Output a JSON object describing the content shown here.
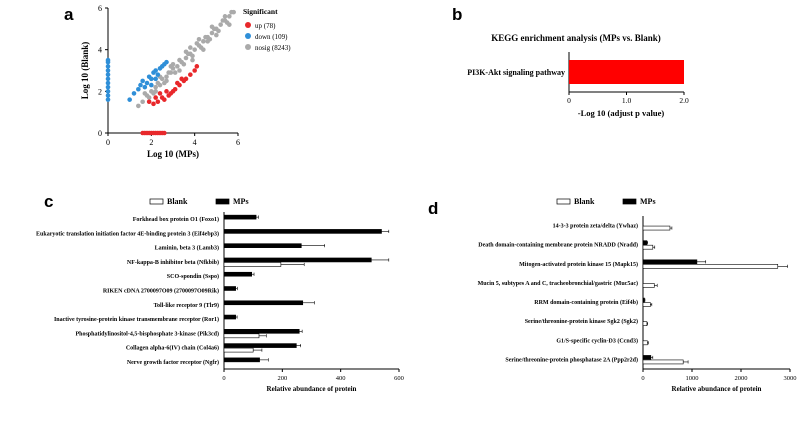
{
  "panels": {
    "a": "a",
    "b": "b",
    "c": "c",
    "d": "d"
  },
  "chart_data": [
    {
      "id": "a",
      "type": "scatter",
      "title": "",
      "xlabel": "Log 10 (MPs)",
      "ylabel": "Log 10 (Blank)",
      "xlim": [
        0,
        6
      ],
      "ylim": [
        0,
        6
      ],
      "xticks": [
        "0",
        "2",
        "4",
        "6"
      ],
      "yticks": [
        "0",
        "2",
        "4",
        "6"
      ],
      "legend_title": "Significant",
      "series": [
        {
          "name": "up",
          "label": "up (78)",
          "color": "#e8282b",
          "points": [
            [
              1.6,
              0
            ],
            [
              1.7,
              0
            ],
            [
              1.8,
              0
            ],
            [
              1.9,
              0
            ],
            [
              2.0,
              0
            ],
            [
              2.1,
              0
            ],
            [
              2.2,
              0
            ],
            [
              2.3,
              0
            ],
            [
              2.4,
              0
            ],
            [
              2.5,
              0
            ],
            [
              2.6,
              0
            ],
            [
              1.9,
              1.5
            ],
            [
              2.1,
              1.4
            ],
            [
              2.3,
              1.5
            ],
            [
              2.5,
              1.7
            ],
            [
              2.6,
              1.6
            ],
            [
              2.8,
              1.8
            ],
            [
              2.9,
              1.9
            ],
            [
              3.0,
              2.0
            ],
            [
              3.1,
              2.1
            ],
            [
              3.3,
              2.3
            ],
            [
              3.5,
              2.5
            ],
            [
              3.6,
              2.6
            ],
            [
              3.8,
              2.8
            ],
            [
              4.0,
              3.0
            ],
            [
              4.1,
              3.2
            ],
            [
              2.2,
              1.7
            ],
            [
              2.7,
              2.0
            ],
            [
              2.4,
              1.9
            ],
            [
              3.2,
              2.4
            ],
            [
              3.4,
              2.6
            ]
          ]
        },
        {
          "name": "down",
          "label": "down (109)",
          "color": "#2f8fd8",
          "points": [
            [
              0,
              1.6
            ],
            [
              0,
              1.8
            ],
            [
              0,
              2.0
            ],
            [
              0,
              2.2
            ],
            [
              0,
              2.4
            ],
            [
              0,
              2.6
            ],
            [
              0,
              2.8
            ],
            [
              0,
              3.0
            ],
            [
              0,
              3.2
            ],
            [
              0,
              3.4
            ],
            [
              0,
              3.5
            ],
            [
              1.0,
              1.6
            ],
            [
              1.2,
              1.9
            ],
            [
              1.5,
              2.3
            ],
            [
              1.6,
              2.5
            ],
            [
              1.7,
              2.2
            ],
            [
              1.9,
              2.7
            ],
            [
              2.0,
              2.6
            ],
            [
              2.1,
              2.9
            ],
            [
              2.2,
              3.0
            ],
            [
              2.3,
              2.8
            ],
            [
              2.4,
              3.1
            ],
            [
              2.5,
              3.2
            ],
            [
              2.6,
              3.3
            ],
            [
              1.8,
              2.4
            ],
            [
              2.0,
              2.3
            ],
            [
              2.7,
              3.4
            ],
            [
              2.2,
              2.6
            ],
            [
              1.4,
              2.1
            ]
          ]
        },
        {
          "name": "nosig",
          "label": "nosig (8243)",
          "color": "#aaaaaa",
          "points": [
            [
              1.4,
              1.3
            ],
            [
              1.6,
              1.5
            ],
            [
              1.8,
              1.8
            ],
            [
              2.0,
              2.0
            ],
            [
              2.2,
              2.2
            ],
            [
              2.4,
              2.3
            ],
            [
              2.5,
              2.6
            ],
            [
              2.7,
              2.7
            ],
            [
              2.9,
              2.9
            ],
            [
              3.0,
              3.1
            ],
            [
              3.2,
              3.2
            ],
            [
              3.4,
              3.4
            ],
            [
              3.6,
              3.6
            ],
            [
              3.8,
              3.8
            ],
            [
              4.0,
              4.0
            ],
            [
              4.2,
              4.2
            ],
            [
              4.4,
              4.4
            ],
            [
              4.6,
              4.6
            ],
            [
              4.8,
              4.8
            ],
            [
              5.0,
              5.0
            ],
            [
              5.2,
              5.2
            ],
            [
              5.4,
              5.4
            ],
            [
              5.6,
              5.6
            ],
            [
              5.8,
              5.8
            ],
            [
              2.1,
              1.9
            ],
            [
              2.3,
              2.4
            ],
            [
              2.6,
              2.4
            ],
            [
              2.8,
              2.9
            ],
            [
              3.1,
              2.9
            ],
            [
              3.3,
              3.5
            ],
            [
              3.5,
              3.3
            ],
            [
              3.7,
              3.8
            ],
            [
              3.9,
              3.7
            ],
            [
              4.1,
              4.3
            ],
            [
              4.3,
              4.1
            ],
            [
              4.5,
              4.6
            ],
            [
              4.7,
              4.5
            ],
            [
              4.9,
              5.0
            ],
            [
              5.1,
              4.9
            ],
            [
              5.3,
              5.4
            ],
            [
              5.5,
              5.3
            ],
            [
              5.7,
              5.8
            ],
            [
              1.7,
              1.9
            ],
            [
              1.9,
              1.7
            ],
            [
              2.4,
              2.7
            ],
            [
              2.7,
              2.5
            ],
            [
              3.0,
              3.3
            ],
            [
              3.3,
              3.0
            ],
            [
              3.6,
              3.9
            ],
            [
              3.9,
              3.5
            ],
            [
              4.2,
              4.5
            ],
            [
              4.4,
              4.0
            ],
            [
              4.8,
              5.1
            ],
            [
              5.0,
              4.7
            ],
            [
              5.4,
              5.6
            ],
            [
              5.6,
              5.2
            ],
            [
              2.2,
              2.0
            ],
            [
              2.9,
              3.2
            ],
            [
              3.8,
              4.1
            ],
            [
              4.6,
              4.4
            ]
          ]
        }
      ]
    },
    {
      "id": "b",
      "type": "bar",
      "orientation": "horizontal",
      "title": "KEGG enrichment analysis (MPs vs. Blank)",
      "xlabel": "-Log 10 (adjust p value)",
      "xlim": [
        0,
        2.0
      ],
      "xticks": [
        "0",
        "1.0",
        "2.0"
      ],
      "categories": [
        "PI3K-Akt signaling pathway"
      ],
      "values": [
        2.0
      ],
      "color": "#ff0000"
    },
    {
      "id": "c",
      "type": "bar",
      "orientation": "horizontal",
      "title": "",
      "xlabel": "Relative abundance of protein",
      "xlim": [
        0,
        600
      ],
      "xticks": [
        "0",
        "200",
        "400",
        "600"
      ],
      "categories": [
        "Forkhead box protein O1 (Foxo1)",
        "Eukaryotic translation initiation factor 4E-binding protein 3 (Eif4ebp3)",
        "Laminin, beta 3 (Lamb3)",
        "NF-kappa-B inhibitor beta (Nfkbib)",
        "SCO-spondin (Sspo)",
        "RIKEN cDNA 2700097O09 (2700097O09Rik)",
        "Toll-like receptor 9 (Tlr9)",
        "Inactive tyrosine-protein kinase transmembrane receptor (Ror1)",
        "Phosphatidylinositol-4,5-bisphosphate 3-kinase (Pik3cd)",
        "Collagen alpha-6(IV) chain (Col4a6)",
        "Nerve growth factor receptor (Ngfr)"
      ],
      "series": [
        {
          "name": "Blank",
          "fill": "#ffffff",
          "values": [
            0,
            0,
            0,
            195,
            0,
            0,
            0,
            0,
            120,
            100,
            0
          ],
          "errors": [
            0,
            0,
            0,
            80,
            0,
            0,
            0,
            0,
            25,
            30,
            0
          ]
        },
        {
          "name": "MPs",
          "fill": "#000000",
          "values": [
            110,
            540,
            265,
            505,
            95,
            40,
            270,
            40,
            258,
            248,
            122
          ],
          "errors": [
            8,
            25,
            80,
            60,
            8,
            6,
            40,
            5,
            10,
            15,
            30
          ]
        }
      ]
    },
    {
      "id": "d",
      "type": "bar",
      "orientation": "horizontal",
      "title": "",
      "xlabel": "Relative abundance of protein",
      "xlim": [
        0,
        3000
      ],
      "xticks": [
        "0",
        "1000",
        "2000",
        "3000"
      ],
      "categories": [
        "14-3-3 protein zeta/delta (Ywhaz)",
        "Death domain-containing membrane protein NRADD (Nradd)",
        "Mitogen-activated protein kinase 15 (Mapk15)",
        "Mucin 5, subtypes A and C, tracheobronchial/gastric (Muc5ac)",
        "RRM domain-containing protein (Eif4b)",
        "Serine/threonine-protein kinase Sgk2 (Sgk2)",
        "G1/S-specific cyclin-D3 (Ccnd3)",
        "Serine/threonine-protein phosphatase 2A (Ppp2r2d)"
      ],
      "series": [
        {
          "name": "Blank",
          "fill": "#ffffff",
          "values": [
            550,
            200,
            2750,
            230,
            150,
            80,
            90,
            820
          ],
          "errors": [
            40,
            40,
            200,
            60,
            30,
            15,
            20,
            100
          ]
        },
        {
          "name": "MPs",
          "fill": "#000000",
          "values": [
            0,
            80,
            1100,
            0,
            30,
            0,
            0,
            160
          ],
          "errors": [
            0,
            15,
            180,
            0,
            10,
            0,
            0,
            40
          ]
        }
      ]
    }
  ]
}
